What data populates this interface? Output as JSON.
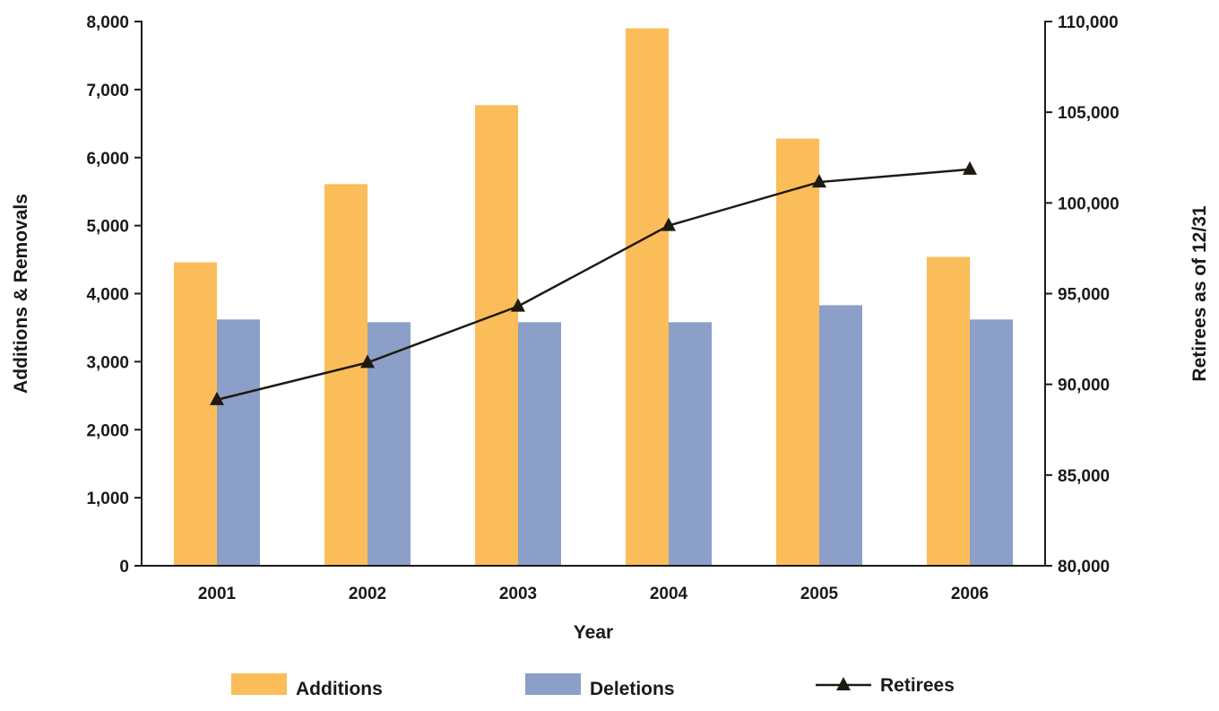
{
  "chart_data": {
    "type": "bar",
    "categories": [
      "2001",
      "2002",
      "2003",
      "2004",
      "2005",
      "2006"
    ],
    "series": [
      {
        "name": "Additions",
        "axis": "left",
        "kind": "bar",
        "color": "#fbbd59",
        "values": [
          4460,
          5610,
          6770,
          7900,
          6280,
          4540
        ]
      },
      {
        "name": "Deletions",
        "axis": "left",
        "kind": "bar",
        "color": "#8c9fc8",
        "values": [
          3620,
          3580,
          3580,
          3580,
          3830,
          3620
        ]
      },
      {
        "name": "Retirees",
        "axis": "right",
        "kind": "line",
        "marker": "triangle",
        "color": "#1f1a10",
        "values": [
          89150,
          91200,
          94300,
          98750,
          101150,
          101850
        ]
      }
    ],
    "xlabel": "Year",
    "ylabel": "Additions & Removals",
    "y2label": "Retirees as of 12/31",
    "ylim": [
      0,
      8000
    ],
    "y2lim": [
      80000,
      110000
    ],
    "yticks": [
      "0",
      "1,000",
      "2,000",
      "3,000",
      "4,000",
      "5,000",
      "6,000",
      "7,000",
      "8,000"
    ],
    "y2ticks": [
      "80,000",
      "85,000",
      "90,000",
      "95,000",
      "100,000",
      "105,000",
      "110,000"
    ],
    "grid": false,
    "legend_position": "bottom"
  }
}
